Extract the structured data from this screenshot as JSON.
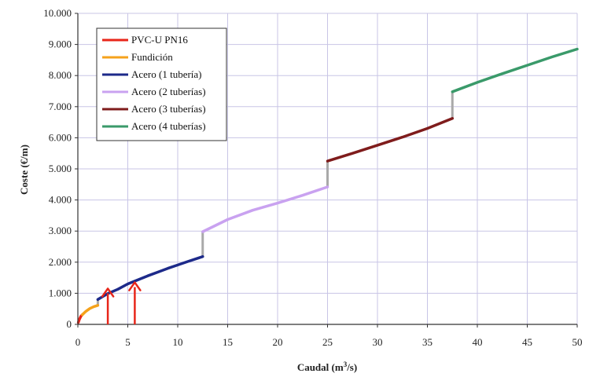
{
  "chart_data": {
    "type": "line",
    "title": "",
    "xlabel": "Caudal (m",
    "xlabel_sup": "3",
    "xlabel_tail": "/s)",
    "ylabel": "Coste (€/m)",
    "xlim": [
      0,
      50
    ],
    "ylim": [
      0,
      10000
    ],
    "grid": true,
    "legend_position": "top-left",
    "x_ticks": [
      "0",
      "5",
      "10",
      "15",
      "20",
      "25",
      "30",
      "35",
      "40",
      "45",
      "50"
    ],
    "y_ticks": [
      "0",
      "1.000",
      "2.000",
      "3.000",
      "4.000",
      "5.000",
      "6.000",
      "7.000",
      "8.000",
      "9.000",
      "10.000"
    ],
    "series": [
      {
        "name": "PVC-U PN16",
        "color": "#e8261a",
        "x": [
          0.05,
          0.15,
          0.3,
          0.45
        ],
        "y": [
          60,
          160,
          260,
          310
        ]
      },
      {
        "name": "Fundición",
        "color": "#f5a21b",
        "x": [
          0.45,
          0.8,
          1.2,
          1.6,
          2.0
        ],
        "y": [
          310,
          420,
          510,
          570,
          610
        ]
      },
      {
        "name": "Acero (1 tubería)",
        "color": "#1d2a8a",
        "x": [
          2.0,
          3,
          4,
          5,
          6,
          7,
          8,
          9,
          10,
          11,
          12.5
        ],
        "y": [
          800,
          990,
          1130,
          1300,
          1430,
          1560,
          1680,
          1800,
          1910,
          2020,
          2180
        ]
      },
      {
        "name": "Acero (2 tuberías)",
        "color": "#c9a2f0",
        "x": [
          12.5,
          15,
          17.5,
          20,
          22.5,
          25
        ],
        "y": [
          2980,
          3370,
          3670,
          3900,
          4150,
          4420
        ]
      },
      {
        "name": "Acero (3 tuberías)",
        "color": "#7f1c1c",
        "x": [
          25,
          27.5,
          30,
          32.5,
          35,
          37.5
        ],
        "y": [
          5250,
          5500,
          5760,
          6020,
          6300,
          6620
        ]
      },
      {
        "name": "Acero (4 tuberías)",
        "color": "#3a9a6a",
        "x": [
          37.5,
          40,
          42.5,
          45,
          47.5,
          50
        ],
        "y": [
          7480,
          7780,
          8060,
          8330,
          8600,
          8850
        ]
      }
    ],
    "transitions": [
      {
        "x": 2.0,
        "y": [
          610,
          800
        ]
      },
      {
        "x": 12.5,
        "y": [
          2180,
          2980
        ]
      },
      {
        "x": 25,
        "y": [
          4420,
          5250
        ]
      },
      {
        "x": 37.5,
        "y": [
          6620,
          7480
        ]
      }
    ],
    "annotations": [
      {
        "type": "arrow",
        "x": 3,
        "y_tip": 1150
      },
      {
        "type": "arrow",
        "x": 5.7,
        "y_tip": 1350
      }
    ],
    "colors": {
      "grid": "#c8c5e6",
      "transition": "#a9a9a9",
      "arrow": "#e8261a"
    }
  }
}
